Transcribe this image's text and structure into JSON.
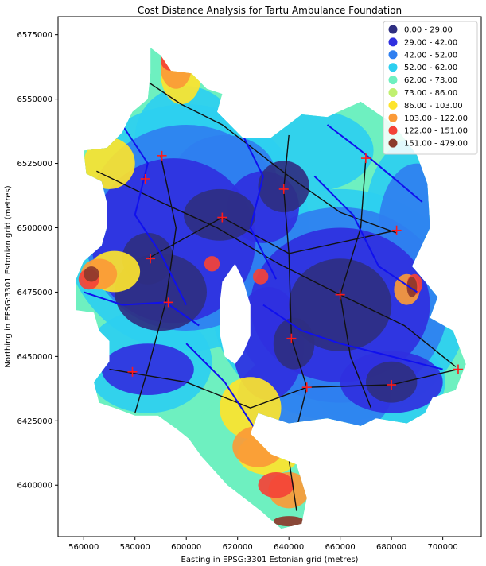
{
  "chart_data": {
    "type": "map",
    "title": "Cost Distance Analysis for Tartu Ambulance Foundation",
    "xlabel": "Easting in EPSG:3301 Estonian grid (metres)",
    "ylabel": "Northing in EPSG:3301 Estonian grid (metres)",
    "xlim": [
      550000,
      715000
    ],
    "ylim": [
      6380000,
      6582000
    ],
    "x_ticks": [
      560000,
      580000,
      600000,
      620000,
      640000,
      660000,
      680000,
      700000
    ],
    "y_ticks": [
      6400000,
      6425000,
      6450000,
      6475000,
      6500000,
      6525000,
      6550000,
      6575000
    ],
    "x_tick_labels": [
      "560000",
      "580000",
      "600000",
      "620000",
      "640000",
      "660000",
      "680000",
      "700000"
    ],
    "y_tick_labels": [
      "6400000",
      "6425000",
      "6450000",
      "6475000",
      "6500000",
      "6525000",
      "6550000",
      "6575000"
    ],
    "legend_position": "top-right",
    "legend": [
      {
        "label": "0.00 - 29.00",
        "color": "#2f2f82"
      },
      {
        "label": "29.00 - 42.00",
        "color": "#3030e0"
      },
      {
        "label": "42.00 - 52.00",
        "color": "#2f7ff0"
      },
      {
        "label": "52.00 - 62.00",
        "color": "#2ccff0"
      },
      {
        "label": "62.00 - 73.00",
        "color": "#6ef0c0"
      },
      {
        "label": "73.00 - 86.00",
        "color": "#c0f070"
      },
      {
        "label": "86.00 - 103.00",
        "color": "#fde42c"
      },
      {
        "label": "103.00 - 122.00",
        "color": "#fb9a37"
      },
      {
        "label": "122.00 - 151.00",
        "color": "#f44237"
      },
      {
        "label": "151.00 - 479.00",
        "color": "#8c3a2c"
      }
    ],
    "stations": [
      [
        590500,
        6528000
      ],
      [
        584000,
        6519000
      ],
      [
        586000,
        6488000
      ],
      [
        593000,
        6471000
      ],
      [
        614000,
        6504000
      ],
      [
        638000,
        6515000
      ],
      [
        670000,
        6527000
      ],
      [
        682000,
        6499000
      ],
      [
        660000,
        6474000
      ],
      [
        641000,
        6457000
      ],
      [
        647000,
        6438000
      ],
      [
        680000,
        6439000
      ],
      [
        706000,
        6445000
      ],
      [
        579000,
        6444000
      ]
    ],
    "region_outline": [
      [
        586000,
        6570000
      ],
      [
        590000,
        6567000
      ],
      [
        594000,
        6561000
      ],
      [
        602000,
        6560000
      ],
      [
        608000,
        6554000
      ],
      [
        614000,
        6552000
      ],
      [
        612000,
        6545000
      ],
      [
        622000,
        6535000
      ],
      [
        633000,
        6535000
      ],
      [
        645000,
        6544000
      ],
      [
        655000,
        6543000
      ],
      [
        668000,
        6549000
      ],
      [
        681000,
        6540000
      ],
      [
        690000,
        6528000
      ],
      [
        694000,
        6517000
      ],
      [
        695000,
        6500000
      ],
      [
        688000,
        6485000
      ],
      [
        694000,
        6478000
      ],
      [
        698000,
        6473000
      ],
      [
        695000,
        6465000
      ],
      [
        704000,
        6460000
      ],
      [
        709000,
        6447000
      ],
      [
        705000,
        6437000
      ],
      [
        696000,
        6434000
      ],
      [
        693000,
        6428000
      ],
      [
        686000,
        6424000
      ],
      [
        674000,
        6426000
      ],
      [
        668000,
        6423000
      ],
      [
        655000,
        6426000
      ],
      [
        640000,
        6424000
      ],
      [
        628000,
        6428000
      ],
      [
        625000,
        6420000
      ],
      [
        633000,
        6412000
      ],
      [
        643000,
        6408000
      ],
      [
        647000,
        6395000
      ],
      [
        645000,
        6385000
      ],
      [
        637000,
        6383000
      ],
      [
        629000,
        6390000
      ],
      [
        616000,
        6400000
      ],
      [
        606000,
        6411000
      ],
      [
        601000,
        6418000
      ],
      [
        596000,
        6422000
      ],
      [
        589000,
        6427000
      ],
      [
        580000,
        6427000
      ],
      [
        572000,
        6430000
      ],
      [
        566000,
        6432000
      ],
      [
        564000,
        6440000
      ],
      [
        570000,
        6448000
      ],
      [
        570000,
        6456000
      ],
      [
        566000,
        6460000
      ],
      [
        564000,
        6467000
      ],
      [
        557000,
        6468000
      ],
      [
        557000,
        6480000
      ],
      [
        560000,
        6487000
      ],
      [
        567000,
        6493000
      ],
      [
        569000,
        6500000
      ],
      [
        569000,
        6510000
      ],
      [
        567000,
        6518000
      ],
      [
        561000,
        6521000
      ],
      [
        560000,
        6530000
      ],
      [
        569000,
        6531000
      ],
      [
        575000,
        6537000
      ],
      [
        579000,
        6545000
      ],
      [
        585000,
        6550000
      ],
      [
        586000,
        6560000
      ]
    ],
    "hole_outline": [
      [
        619000,
        6486000
      ],
      [
        622000,
        6480000
      ],
      [
        625000,
        6470000
      ],
      [
        625000,
        6458000
      ],
      [
        622000,
        6451000
      ],
      [
        619000,
        6447000
      ],
      [
        615000,
        6450000
      ],
      [
        613000,
        6459000
      ],
      [
        613000,
        6470000
      ],
      [
        614000,
        6479000
      ]
    ]
  }
}
